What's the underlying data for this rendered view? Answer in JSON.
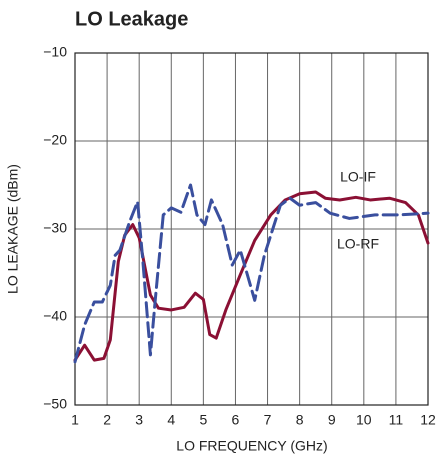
{
  "chart_data": {
    "type": "line",
    "title": "LO Leakage",
    "x_label": "LO FREQUENCY (GHz)",
    "y_label": "LO LEAKAGE (dBm)",
    "xlim": [
      1,
      12
    ],
    "xticks": [
      1,
      2,
      3,
      4,
      5,
      6,
      7,
      8,
      9,
      10,
      11,
      12
    ],
    "ylim": [
      -50,
      -10
    ],
    "yticks": [
      {
        "value": -50,
        "label": "−50"
      },
      {
        "value": -40,
        "label": "−40"
      },
      {
        "value": -30,
        "label": "−30"
      },
      {
        "value": -20,
        "label": "−20"
      },
      {
        "value": -10,
        "label": "−10"
      }
    ],
    "grid": true,
    "series": [
      {
        "name": "LO-IF",
        "color": "#8b1034",
        "dash": false,
        "x": [
          1,
          1.3,
          1.6,
          1.9,
          2.1,
          2.35,
          2.55,
          2.8,
          3.0,
          3.35,
          3.6,
          4.0,
          4.4,
          4.75,
          5.0,
          5.2,
          5.4,
          5.7,
          6.15,
          6.6,
          7.1,
          7.55,
          8.0,
          8.5,
          8.8,
          9.25,
          9.75,
          10.2,
          10.8,
          11.3,
          11.7,
          12
        ],
        "values": [
          -44.9,
          -43.2,
          -44.9,
          -44.7,
          -42.6,
          -33.7,
          -30.7,
          -29.5,
          -31,
          -37.5,
          -39,
          -39.2,
          -38.9,
          -37.3,
          -38,
          -42,
          -42.4,
          -39.2,
          -35.2,
          -31.3,
          -28.4,
          -26.7,
          -26,
          -25.8,
          -26.5,
          -26.7,
          -26.4,
          -26.7,
          -26.5,
          -27,
          -28.4,
          -31.6
        ]
      },
      {
        "name": "LO-RF",
        "color": "#3a4f9e",
        "dash": true,
        "x": [
          1,
          1.3,
          1.6,
          1.85,
          2.1,
          2.25,
          2.4,
          2.7,
          2.95,
          3.1,
          3.35,
          3.5,
          3.75,
          4.0,
          4.3,
          4.6,
          4.8,
          5.05,
          5.25,
          5.6,
          5.9,
          6.15,
          6.6,
          6.9,
          7.4,
          7.7,
          8.0,
          8.5,
          8.95,
          9.55,
          10.35,
          11.1,
          12
        ],
        "values": [
          -45.1,
          -40.9,
          -38.3,
          -38.3,
          -36.4,
          -33,
          -32.4,
          -29.2,
          -26.9,
          -33,
          -44.3,
          -38.1,
          -28.4,
          -27.6,
          -28.1,
          -25,
          -28.4,
          -29.5,
          -26.7,
          -29.5,
          -34.1,
          -32.4,
          -38.1,
          -33,
          -27.3,
          -26.5,
          -27.3,
          -27,
          -28.2,
          -28.8,
          -28.4,
          -28.4,
          -28.2
        ]
      }
    ]
  }
}
